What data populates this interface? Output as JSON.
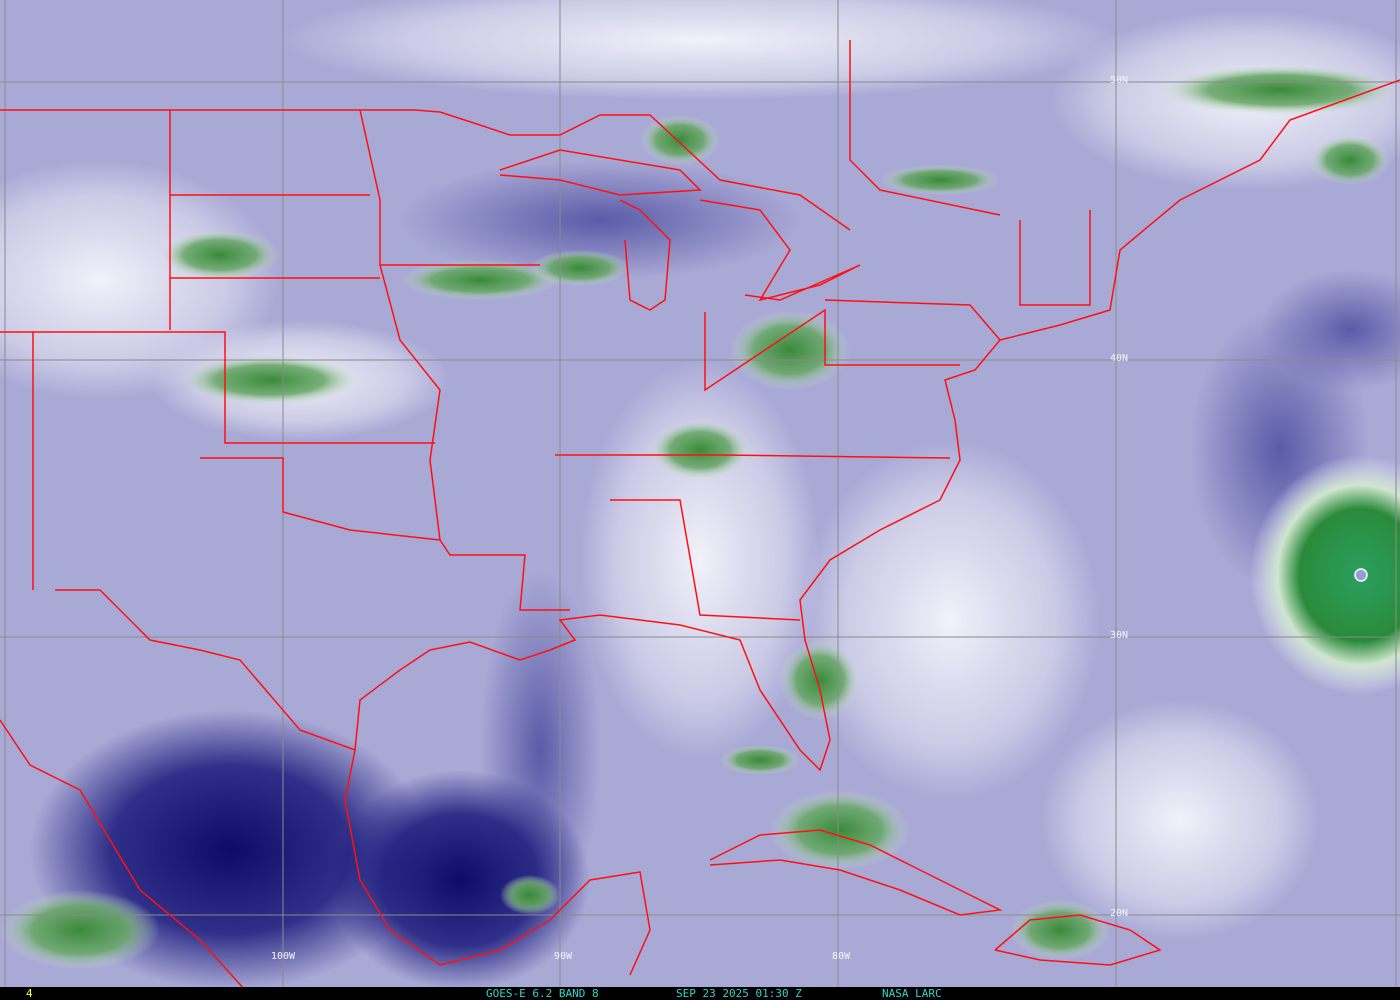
{
  "image": {
    "type": "satellite water vapor imagery",
    "colors": {
      "background_moisture": "#a9a9d6",
      "dry_air": "#12126e",
      "high_cloud": "#3f8f3f",
      "thin_cloud": "#f2f2fa",
      "borders": "#ff1010",
      "grid": "#808080"
    }
  },
  "grid_labels": {
    "lat_50": "50N",
    "lat_40": "40N",
    "lat_30": "30N",
    "lat_20": "20N",
    "lon_100": "100W",
    "lon_90": "90W",
    "lon_80": "80W"
  },
  "footer": {
    "frame": "4",
    "satellite": "GOES-E 6.2 BAND 8",
    "datetime": "SEP 23 2025 01:30 Z",
    "source": "NASA LARC"
  }
}
